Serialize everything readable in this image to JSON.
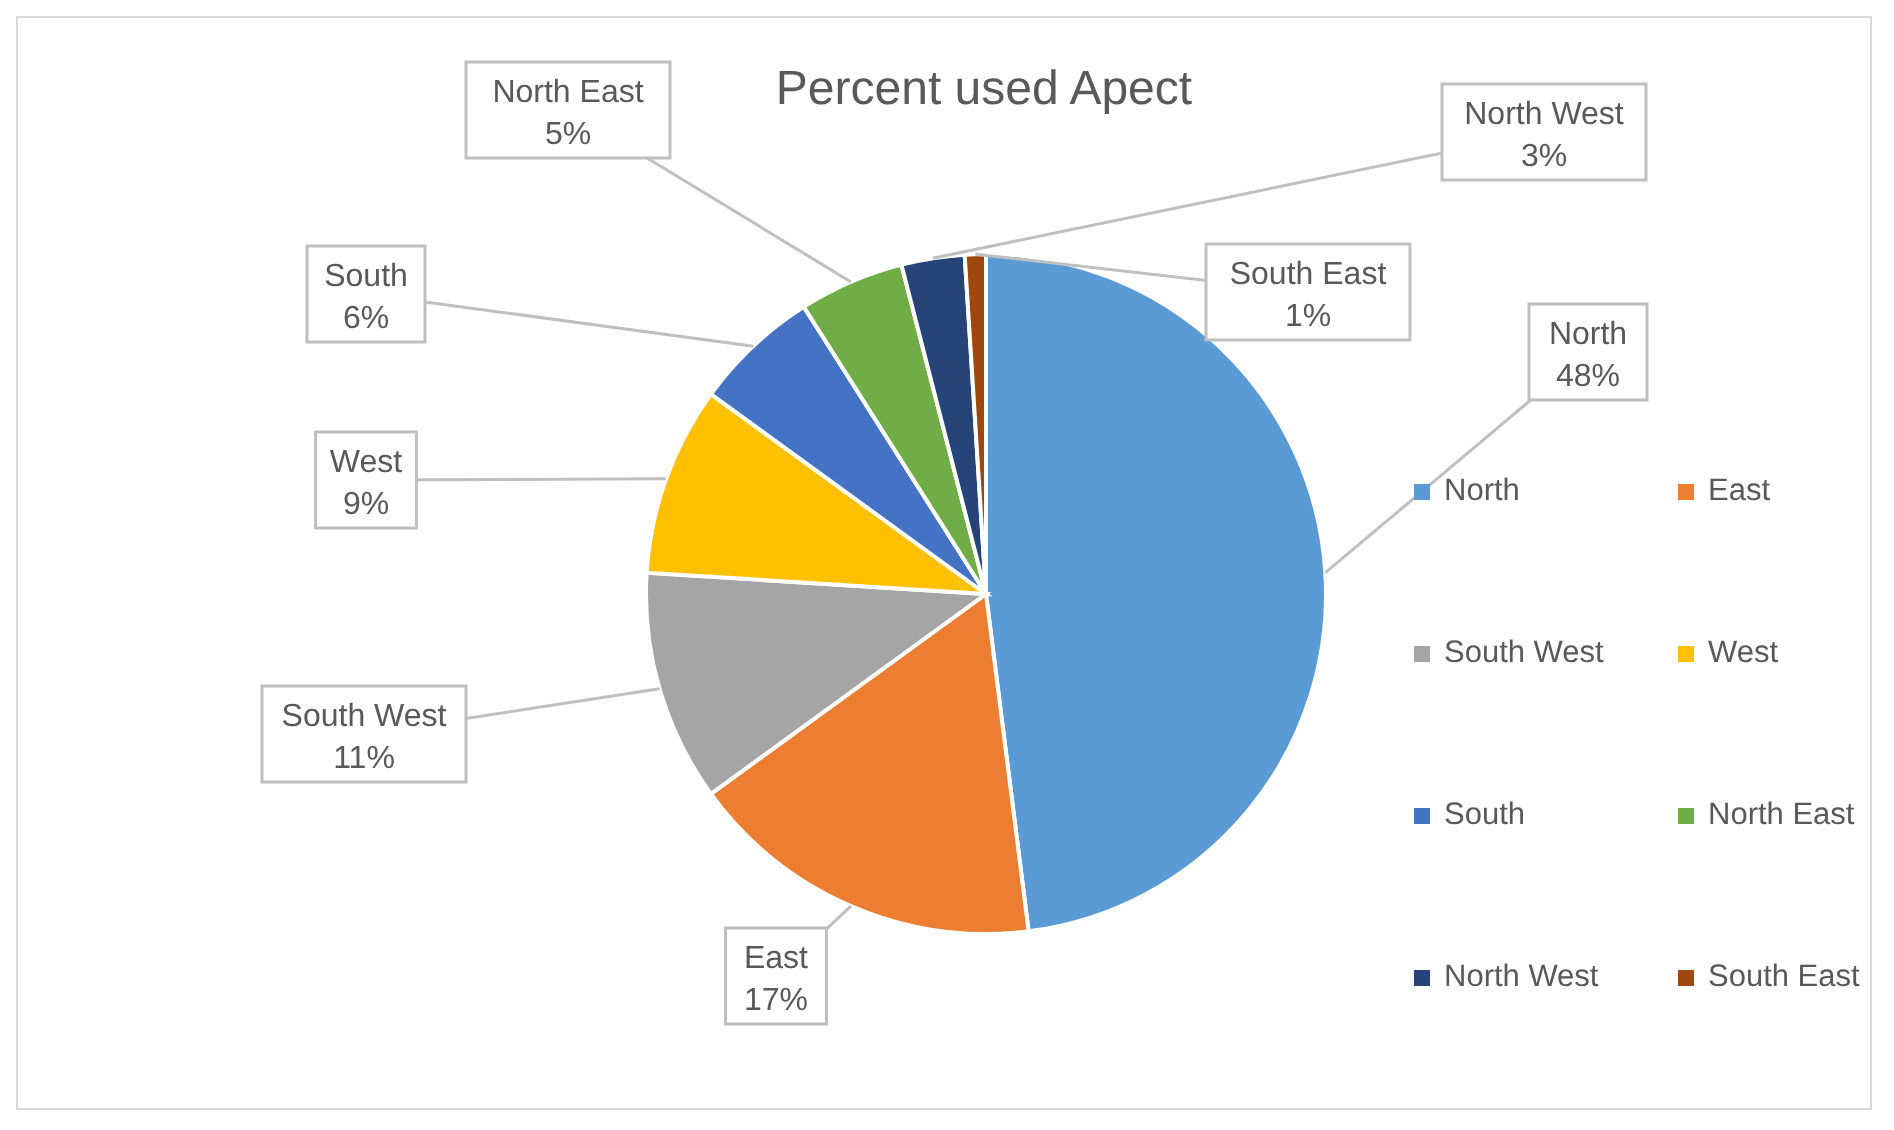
{
  "chart_data": {
    "type": "pie",
    "title": "Percent used Apect",
    "categories": [
      "North",
      "East",
      "South West",
      "West",
      "South",
      "North East",
      "North West",
      "South East"
    ],
    "values": [
      48,
      17,
      11,
      9,
      6,
      5,
      3,
      1
    ],
    "value_labels": [
      "48%",
      "17%",
      "11%",
      "9%",
      "6%",
      "5%",
      "3%",
      "1%"
    ],
    "colors": [
      "#5b9bd5",
      "#ed7d31",
      "#a5a5a5",
      "#ffc000",
      "#4472c4",
      "#70ad47",
      "#264478",
      "#9e480e"
    ],
    "legend": "right"
  }
}
